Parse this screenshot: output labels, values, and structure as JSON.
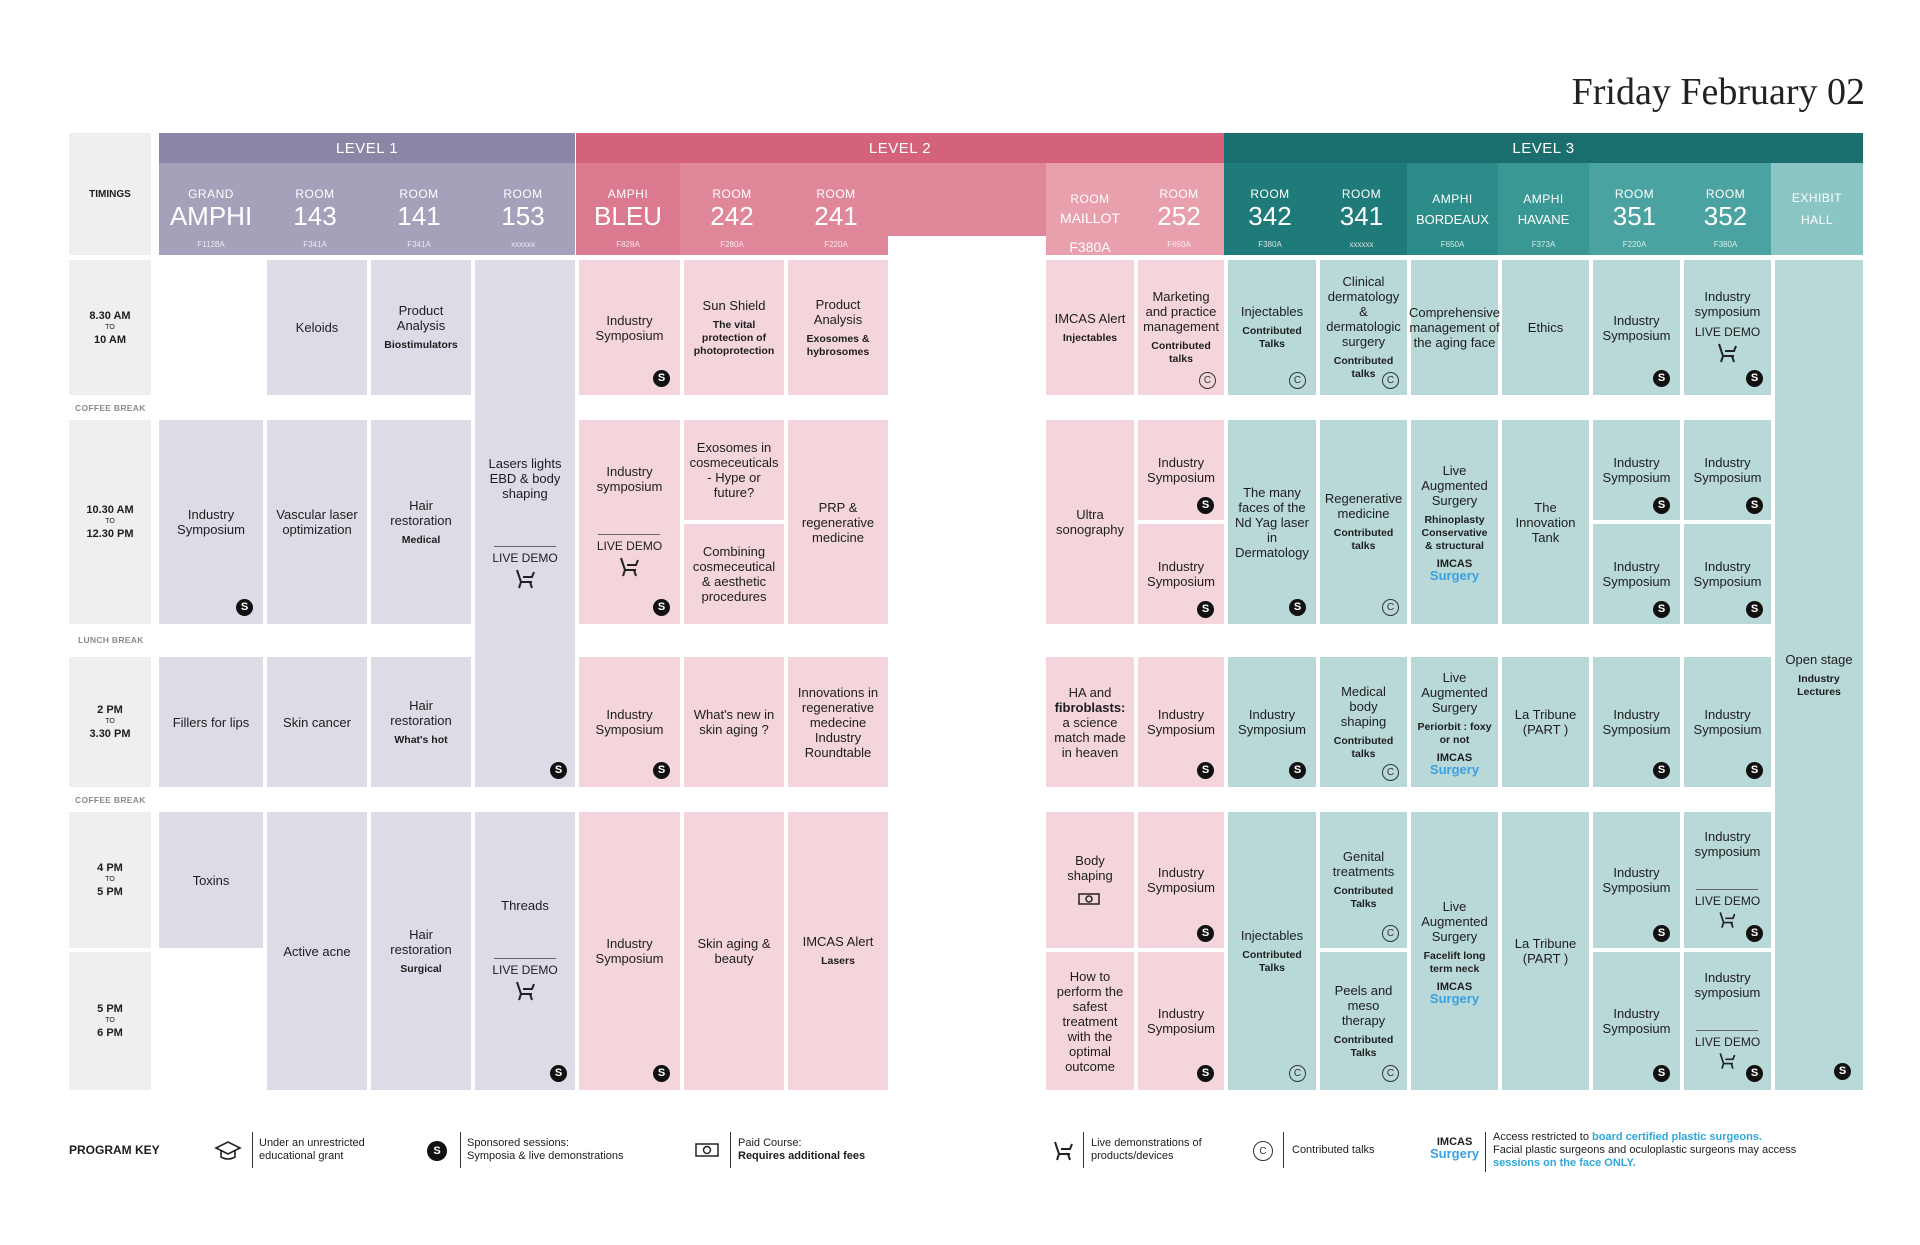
{
  "title": "Friday February 02",
  "timings_label": "TIMINGS",
  "levels": {
    "l1": "LEVEL 1",
    "l2": "LEVEL 2",
    "l3": "LEVEL 3"
  },
  "rooms": {
    "grand": {
      "a": "GRAND",
      "b": "AMPHI",
      "c": "F1128A"
    },
    "r143": {
      "a": "ROOM",
      "b": "143",
      "c": "F341A"
    },
    "r141": {
      "a": "ROOM",
      "b": "141",
      "c": "F341A"
    },
    "r153": {
      "a": "ROOM",
      "b": "153",
      "c": "xxxxxx"
    },
    "bleu": {
      "a": "AMPHI",
      "b": "BLEU",
      "c": "F828A"
    },
    "r242": {
      "a": "ROOM",
      "b": "242",
      "c": "F280A"
    },
    "r241": {
      "a": "ROOM",
      "b": "241",
      "c": "F220A"
    },
    "maillot": {
      "a": "ROOM",
      "b": "MAILLOT",
      "c": "F380A"
    },
    "r252": {
      "a": "ROOM",
      "b": "252",
      "c": "F650A"
    },
    "r342": {
      "a": "ROOM",
      "b": "342",
      "c": "F380A"
    },
    "r341": {
      "a": "ROOM",
      "b": "341",
      "c": "xxxxxx"
    },
    "bordeaux": {
      "a": "AMPHI",
      "b": "BORDEAUX",
      "c": "F650A"
    },
    "havane": {
      "a": "AMPHI",
      "b": "HAVANE",
      "c": "F373A"
    },
    "r351": {
      "a": "ROOM",
      "b": "351",
      "c": "F220A"
    },
    "r352": {
      "a": "ROOM",
      "b": "352",
      "c": "F380A"
    },
    "exhibit": {
      "a": "EXHIBIT",
      "b": "HALL"
    }
  },
  "times": {
    "t1": {
      "a": "8.30 AM",
      "to": "TO",
      "b": "10 AM"
    },
    "t2": {
      "a": "10.30 AM",
      "to": "TO",
      "b": "12.30 PM"
    },
    "t3": {
      "a": "2 PM",
      "to": "TO",
      "b": "3.30 PM"
    },
    "t4": {
      "a": "4 PM",
      "to": "TO",
      "b": "5 PM"
    },
    "t5": {
      "a": "5 PM",
      "to": "TO",
      "b": "6 PM"
    }
  },
  "breaks": {
    "coffee1": "COFFEE BREAK",
    "lunch": "LUNCH BREAK",
    "coffee2": "COFFEE BREAK"
  },
  "common": {
    "s": "S",
    "c": "C",
    "live_demo": "LIVE DEMO",
    "imcas": "IMCAS",
    "surgery": "Surgery"
  },
  "sessions": {
    "keloids": "Keloids",
    "product_analysis_1": "Product Analysis",
    "biostimulators": "Biostimulators",
    "lasers": "Lasers lights EBD & body shaping",
    "industry_symposium": "Industry Symposium",
    "sun_shield": "Sun Shield",
    "sun_shield_sub": "The vital protection of photoprotection",
    "product_analysis_2": "Product Analysis",
    "exosomes": "Exosomes & hybrosomes",
    "imcas_alert": "IMCAS Alert",
    "injectables": "Injectables",
    "marketing": "Marketing and practice management",
    "contributed_talks": "Contributed talks",
    "injectables_cell": "Injectables",
    "contributed_talks2": "Contributed Talks",
    "clinical": "Clinical dermatology & dermatologic surgery",
    "comprehensive": "Comprehensive management of the aging face",
    "ethics": "Ethics",
    "industry_symposium_lc": "Industry symposium",
    "vascular": "Vascular laser optimization",
    "hair": "Hair restoration",
    "medical": "Medical",
    "exosomes_cosm": "Exosomes in cosmeceuticals - Hype or future?",
    "combining": "Combining cosmeceutical & aesthetic procedures",
    "prp": "PRP & regenerative medicine",
    "ultra": "Ultra sonography",
    "nd_yag": "The many faces of the Nd Yag laser in Dermatology",
    "regen": "Regenerative medicine",
    "live_aug": "Live Augmented Surgery",
    "rhino": "Rhinoplasty Conservative & structural",
    "innovation_tank": "The Innovation Tank",
    "fillers": "Fillers for lips",
    "skin_cancer": "Skin cancer",
    "whats_hot": "What's hot",
    "whats_new": "What's new in skin aging ?",
    "innovations": "Innovations in regenerative medecine Industry Roundtable",
    "ha_1": "HA and",
    "ha_2": "fibroblasts:",
    "ha_3": "a science match made in heaven",
    "med_body": "Medical body shaping",
    "periorbit": "Periorbit : foxy or not",
    "tribune": "La Tribune (PART )",
    "toxins": "Toxins",
    "acne": "Active acne",
    "surgical": "Surgical",
    "threads": "Threads",
    "skin_beauty": "Skin aging & beauty",
    "lasers_sub": "Lasers",
    "body_shaping": "Body shaping",
    "genital": "Genital treatments",
    "facelift": "Facelift long term neck",
    "how_to": "How to perform the safest treatment with the optimal outcome",
    "peels": "Peels and meso therapy",
    "open_stage": "Open stage",
    "industry_lectures": "Industry Lectures"
  },
  "key": {
    "label": "PROGRAM KEY",
    "grant": "Under an unrestricted educational grant",
    "sponsored_a": "Sponsored sessions:",
    "sponsored_b": "Symposia & live demonstrations",
    "paid_a": "Paid Course:",
    "paid_b": "Requires additional fees",
    "live": "Live demonstrations of products/devices",
    "contributed": "Contributed talks",
    "access_a": "Access restricted to ",
    "access_b": "board certified plastic surgeons.",
    "access_c": "Facial plastic surgeons and oculoplastic surgeons may access ",
    "access_d": "sessions on the face ONLY."
  },
  "colors": {
    "level1": "#8a87a6",
    "level2": "#d4627a",
    "level3": "#1a6f6e"
  }
}
